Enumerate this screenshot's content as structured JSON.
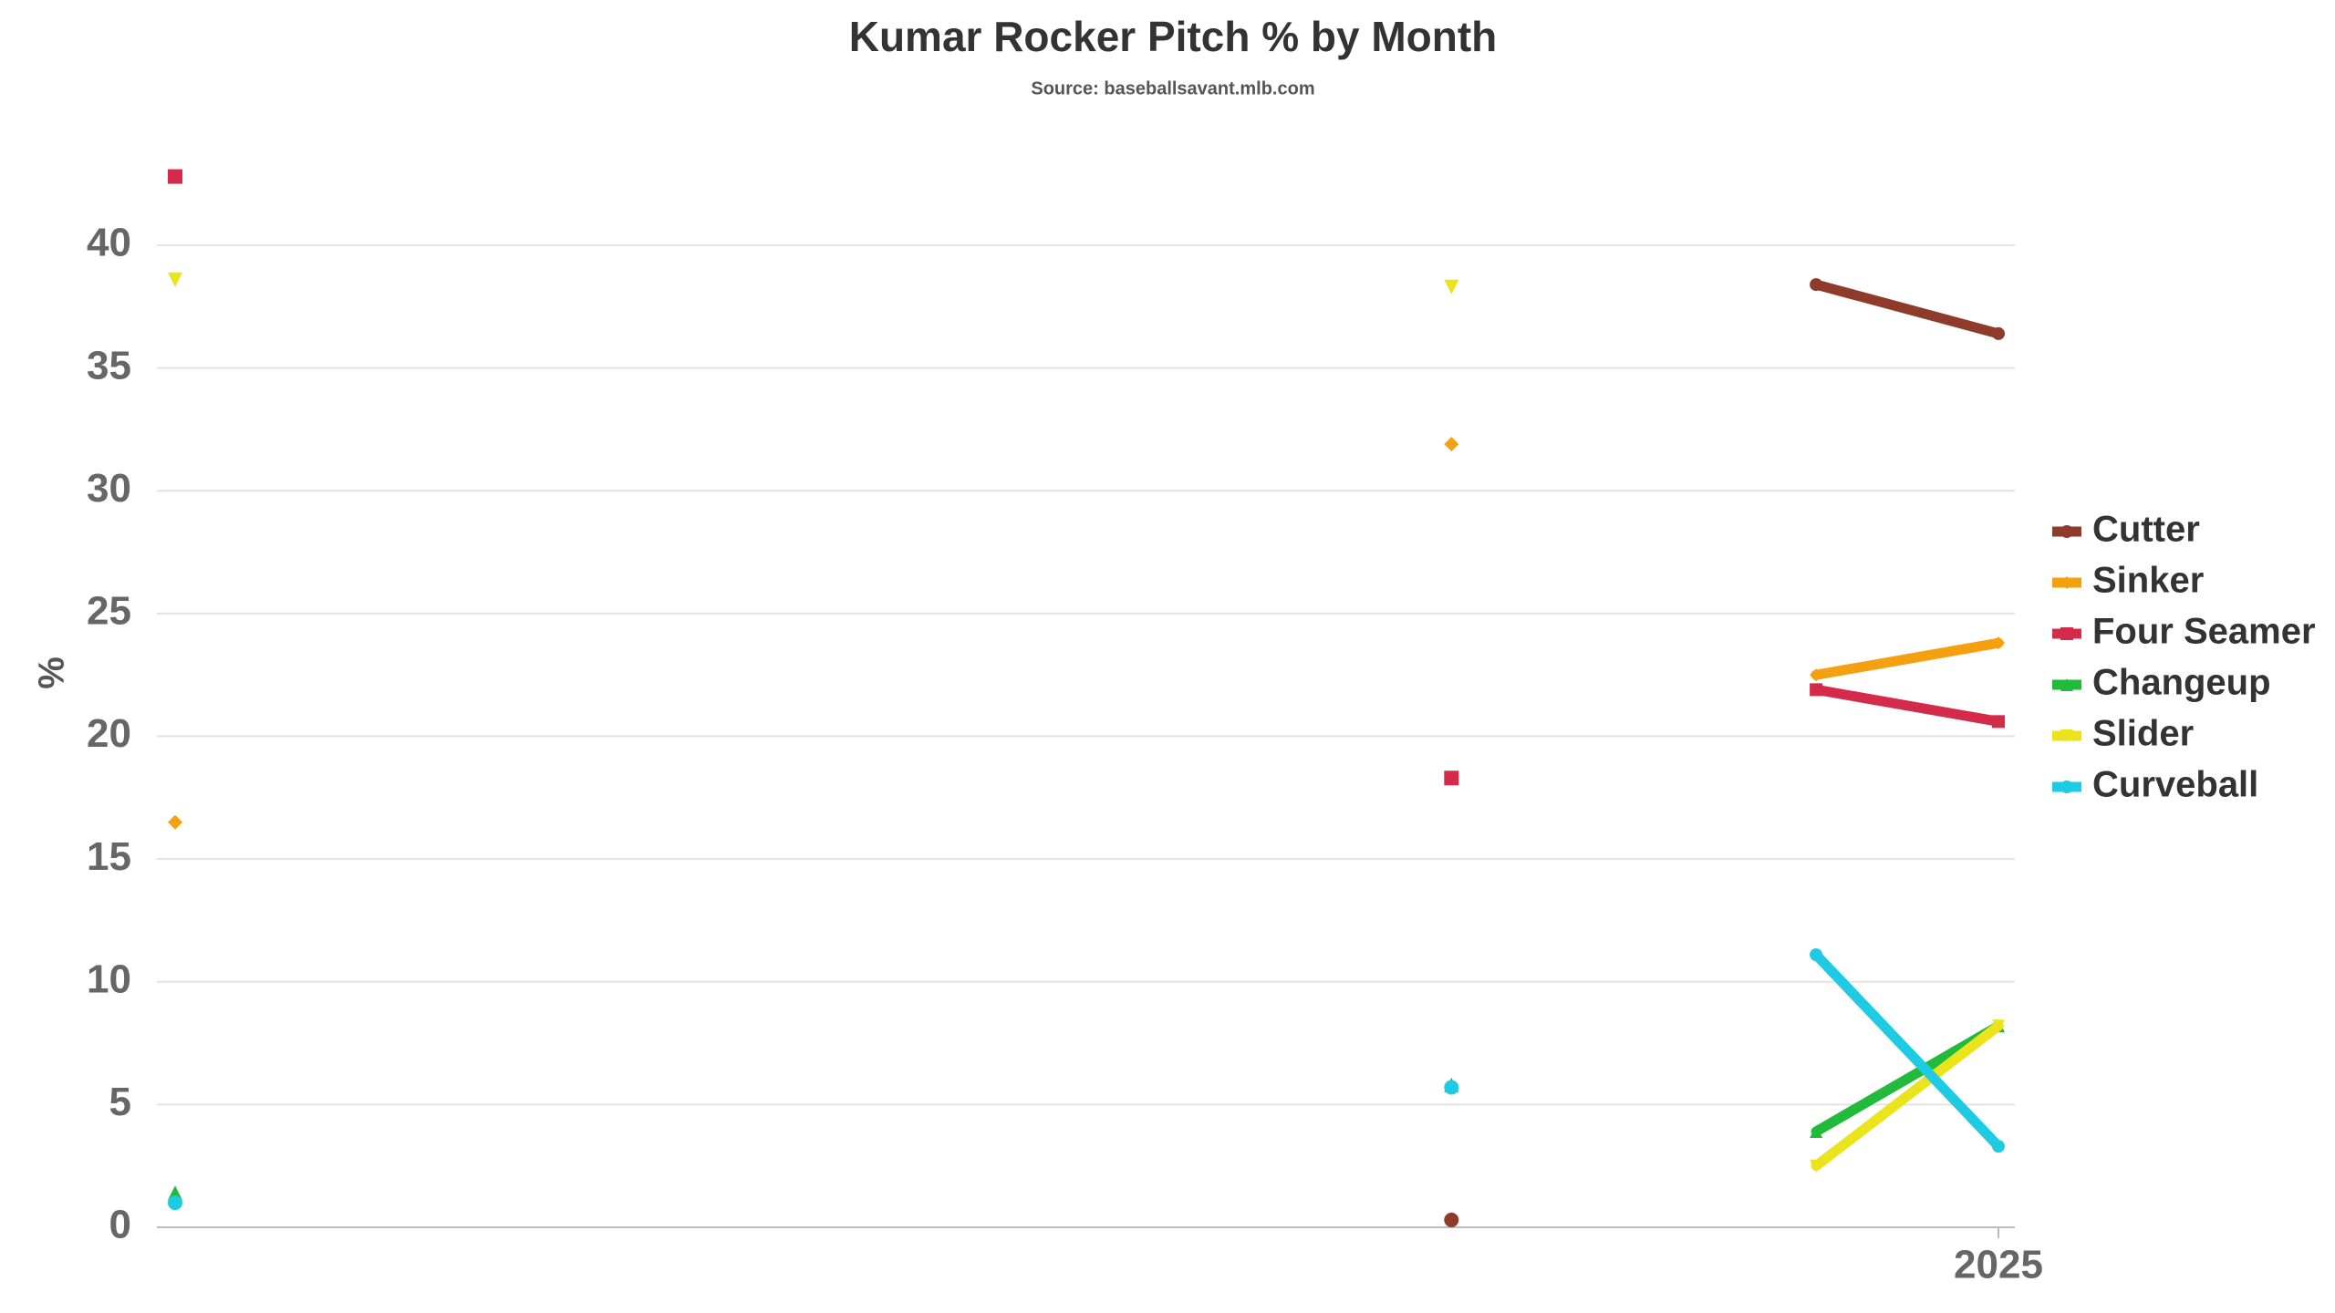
{
  "chart_data": {
    "type": "line",
    "title": "Kumar Rocker Pitch % by Month",
    "subtitle": "Source: baseballsavant.mlb.com",
    "y_label": "%",
    "categories": [
      null,
      null,
      null,
      null,
      null,
      null,
      null,
      null,
      null,
      null,
      "2025"
    ],
    "series": [
      {
        "name": "Cutter",
        "color": "#8e3b2b",
        "marker": "circle",
        "values": [
          null,
          null,
          null,
          null,
          null,
          null,
          null,
          0.3,
          null,
          38.4,
          36.4
        ]
      },
      {
        "name": "Sinker",
        "color": "#f5a010",
        "marker": "diamond",
        "values": [
          16.5,
          null,
          null,
          null,
          null,
          null,
          null,
          31.9,
          null,
          22.5,
          23.8
        ]
      },
      {
        "name": "Four Seamer",
        "color": "#d42b4b",
        "marker": "square",
        "values": [
          42.8,
          null,
          null,
          null,
          null,
          null,
          null,
          18.3,
          null,
          21.9,
          20.6
        ]
      },
      {
        "name": "Changeup",
        "color": "#22ba3b",
        "marker": "triangle",
        "values": [
          1.4,
          null,
          null,
          null,
          null,
          null,
          null,
          5.8,
          null,
          3.9,
          8.2
        ]
      },
      {
        "name": "Slider",
        "color": "#ebe31c",
        "marker": "triangle-down",
        "values": [
          38.6,
          null,
          null,
          null,
          null,
          null,
          null,
          38.3,
          null,
          2.5,
          8.2
        ]
      },
      {
        "name": "Curveball",
        "color": "#1fcbe3",
        "marker": "circle",
        "values": [
          1.0,
          null,
          null,
          null,
          null,
          null,
          null,
          5.7,
          null,
          11.1,
          3.3
        ]
      }
    ],
    "ylim": [
      0,
      43.5
    ],
    "yticks": [
      0,
      5,
      10,
      15,
      20,
      25,
      30,
      35,
      40
    ],
    "grid": true,
    "legend": "right"
  }
}
